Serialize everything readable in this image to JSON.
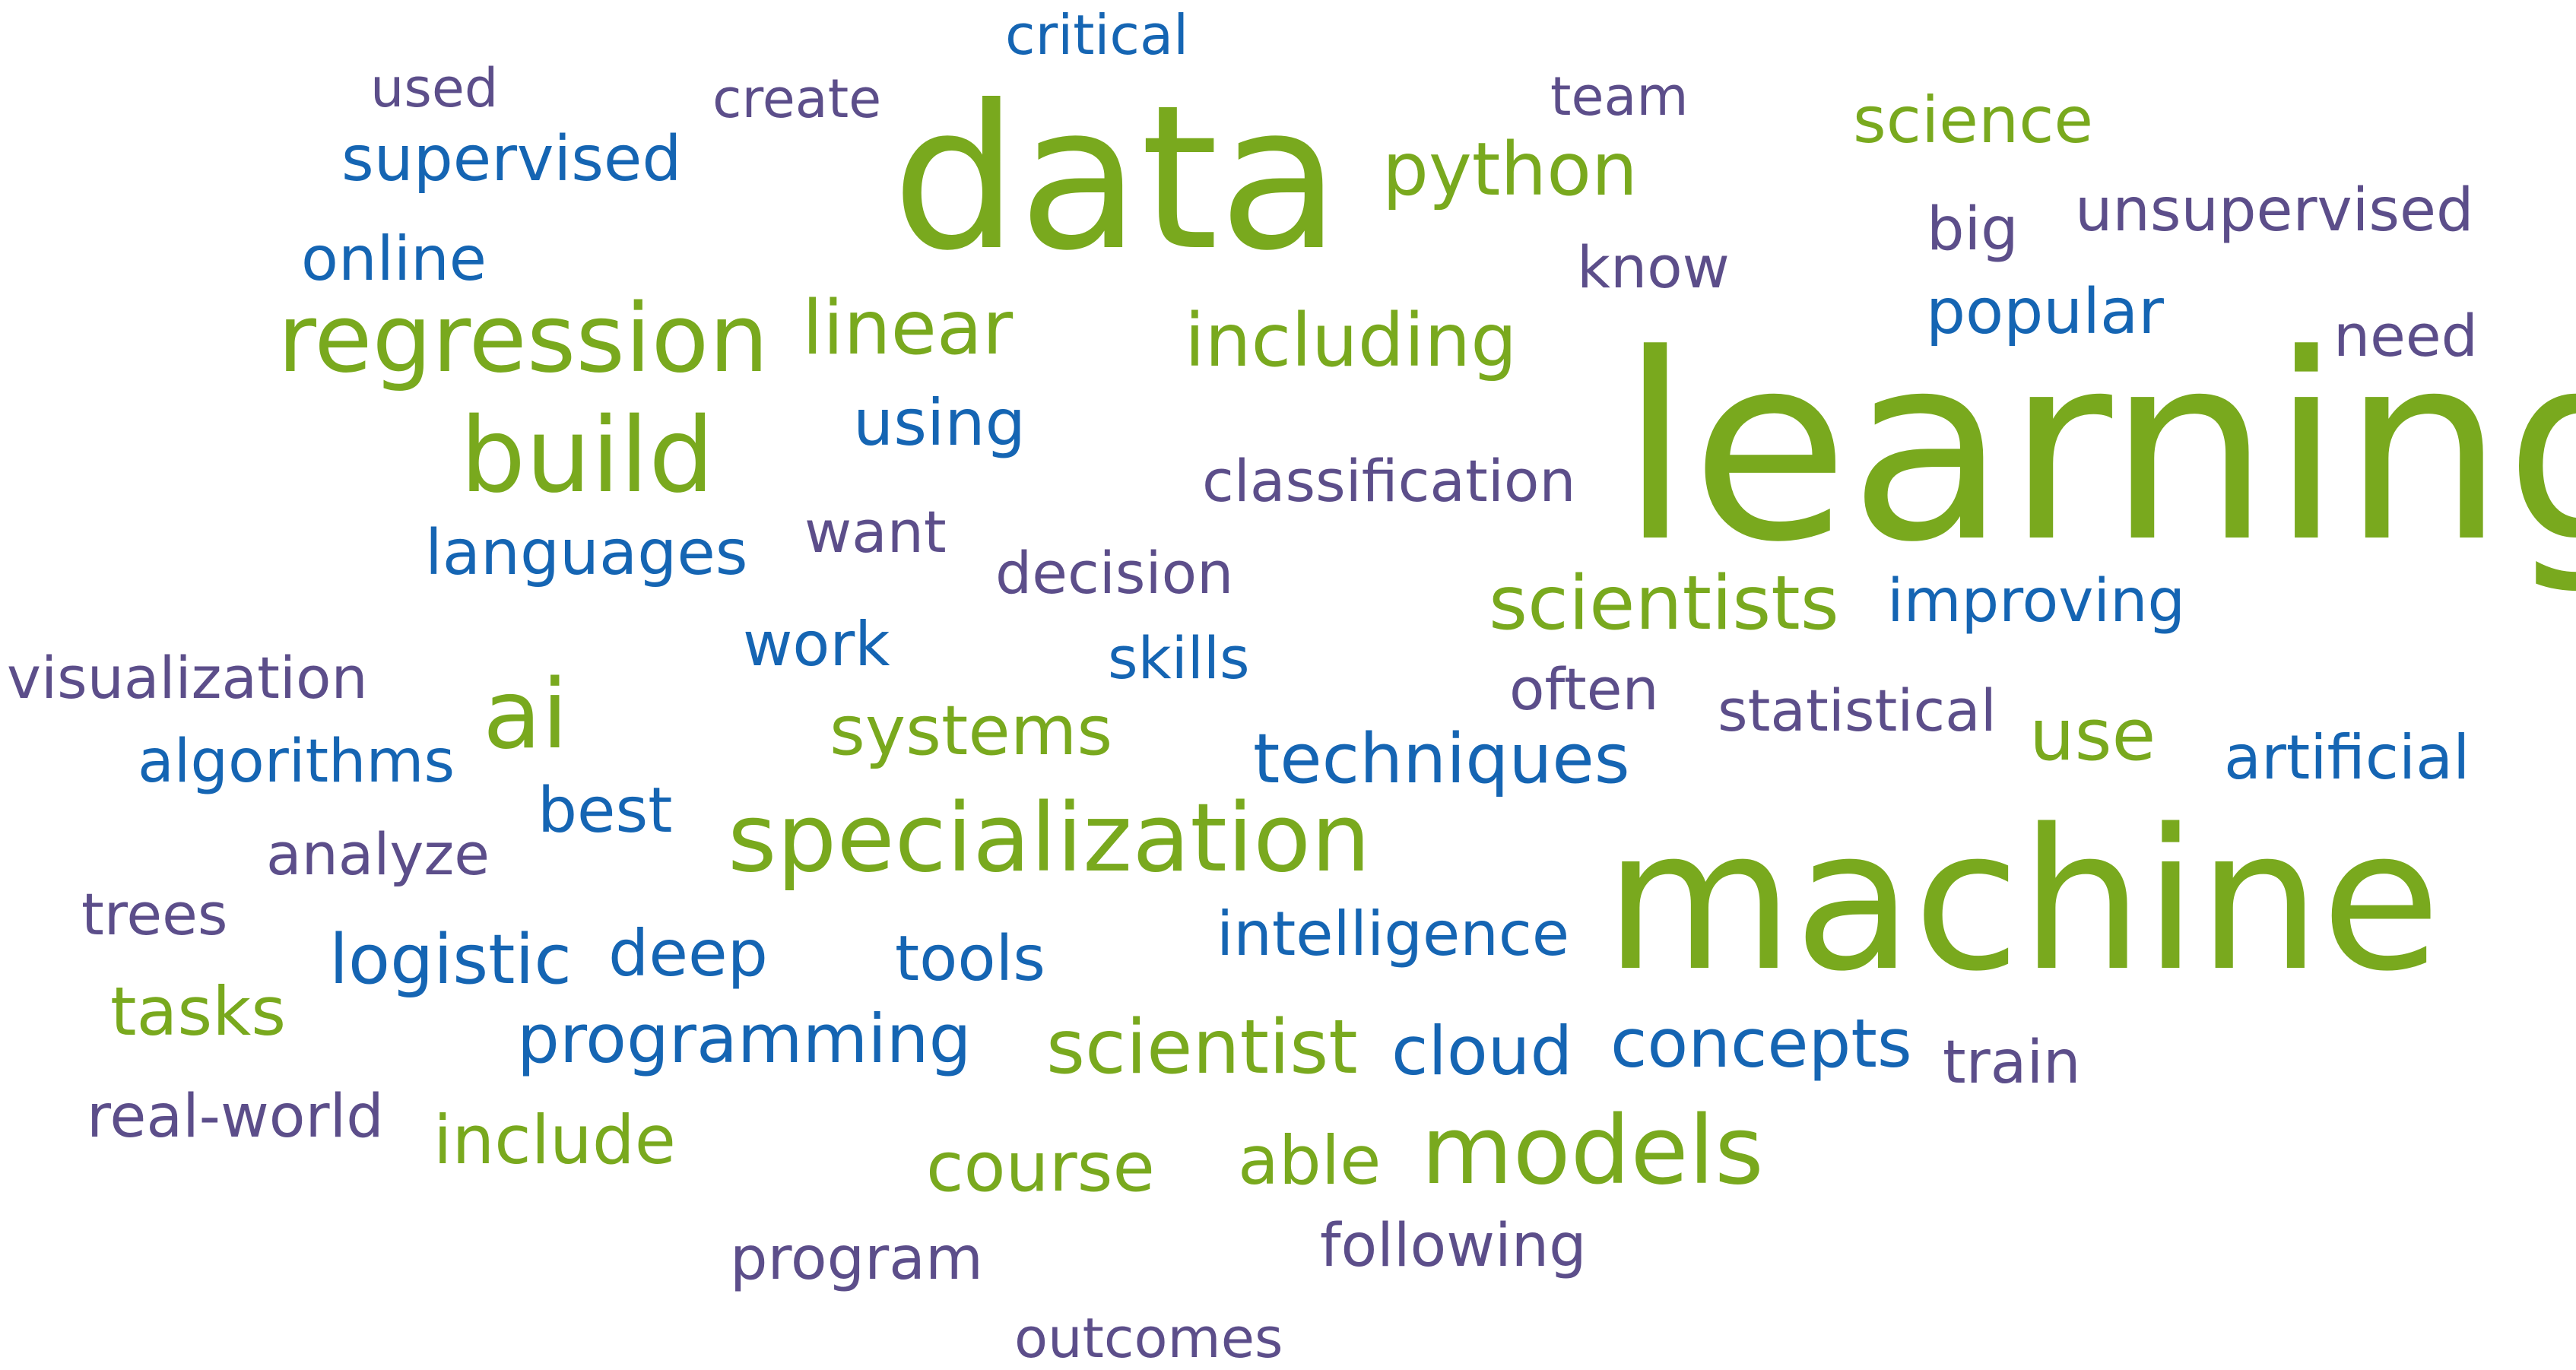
{
  "colors": {
    "green": "#79a91e",
    "blue": "#1565b3",
    "purple": "#5c4e8a"
  },
  "words": [
    {
      "text": "critical",
      "color": "blue"
    },
    {
      "text": "used",
      "color": "purple"
    },
    {
      "text": "create",
      "color": "purple"
    },
    {
      "text": "data",
      "color": "green"
    },
    {
      "text": "team",
      "color": "purple"
    },
    {
      "text": "science",
      "color": "green"
    },
    {
      "text": "supervised",
      "color": "blue"
    },
    {
      "text": "python",
      "color": "green"
    },
    {
      "text": "big",
      "color": "purple"
    },
    {
      "text": "unsupervised",
      "color": "purple"
    },
    {
      "text": "online",
      "color": "blue"
    },
    {
      "text": "know",
      "color": "purple"
    },
    {
      "text": "popular",
      "color": "blue"
    },
    {
      "text": "regression",
      "color": "green"
    },
    {
      "text": "linear",
      "color": "green"
    },
    {
      "text": "including",
      "color": "green"
    },
    {
      "text": "need",
      "color": "purple"
    },
    {
      "text": "learning",
      "color": "green"
    },
    {
      "text": "using",
      "color": "blue"
    },
    {
      "text": "build",
      "color": "green"
    },
    {
      "text": "classification",
      "color": "purple"
    },
    {
      "text": "want",
      "color": "purple"
    },
    {
      "text": "languages",
      "color": "blue"
    },
    {
      "text": "decision",
      "color": "purple"
    },
    {
      "text": "scientists",
      "color": "green"
    },
    {
      "text": "improving",
      "color": "blue"
    },
    {
      "text": "work",
      "color": "blue"
    },
    {
      "text": "skills",
      "color": "blue"
    },
    {
      "text": "visualization",
      "color": "purple"
    },
    {
      "text": "often",
      "color": "purple"
    },
    {
      "text": "statistical",
      "color": "purple"
    },
    {
      "text": "ai",
      "color": "green"
    },
    {
      "text": "systems",
      "color": "green"
    },
    {
      "text": "use",
      "color": "green"
    },
    {
      "text": "algorithms",
      "color": "blue"
    },
    {
      "text": "techniques",
      "color": "blue"
    },
    {
      "text": "artificial",
      "color": "blue"
    },
    {
      "text": "best",
      "color": "blue"
    },
    {
      "text": "specialization",
      "color": "green"
    },
    {
      "text": "analyze",
      "color": "purple"
    },
    {
      "text": "machine",
      "color": "green"
    },
    {
      "text": "trees",
      "color": "purple"
    },
    {
      "text": "intelligence",
      "color": "blue"
    },
    {
      "text": "logistic",
      "color": "blue"
    },
    {
      "text": "deep",
      "color": "blue"
    },
    {
      "text": "tools",
      "color": "blue"
    },
    {
      "text": "tasks",
      "color": "green"
    },
    {
      "text": "programming",
      "color": "blue"
    },
    {
      "text": "scientist",
      "color": "green"
    },
    {
      "text": "cloud",
      "color": "blue"
    },
    {
      "text": "concepts",
      "color": "blue"
    },
    {
      "text": "train",
      "color": "purple"
    },
    {
      "text": "real-world",
      "color": "purple"
    },
    {
      "text": "include",
      "color": "green"
    },
    {
      "text": "models",
      "color": "green"
    },
    {
      "text": "able",
      "color": "green"
    },
    {
      "text": "course",
      "color": "green"
    },
    {
      "text": "following",
      "color": "purple"
    },
    {
      "text": "program",
      "color": "purple"
    },
    {
      "text": "outcomes",
      "color": "purple"
    }
  ]
}
